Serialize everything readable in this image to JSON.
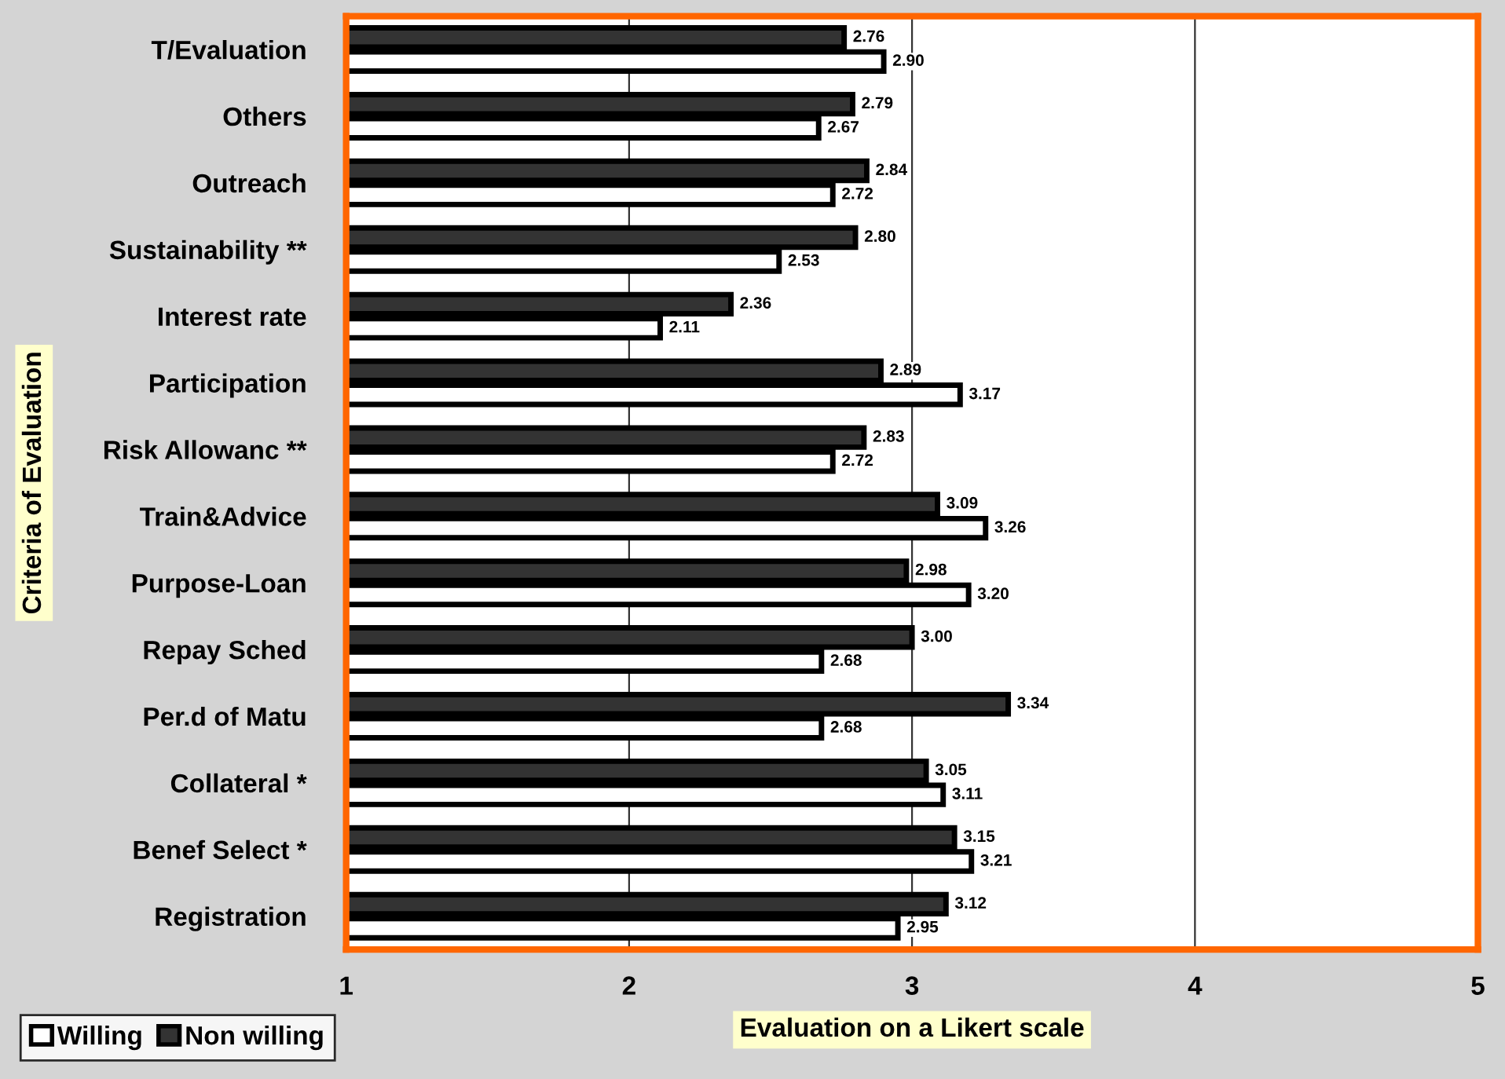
{
  "chart_data": {
    "type": "bar",
    "orientation": "horizontal",
    "xlabel": "Evaluation on a Likert scale",
    "ylabel": "Criteria of Evaluation",
    "categories": [
      "T/Evaluation",
      "Others",
      "Outreach",
      "Sustainability **",
      "Interest rate",
      "Participation",
      "Risk Allowanc **",
      "Train&Advice",
      "Purpose-Loan",
      "Repay Sched",
      "Per.d of Matu",
      "Collateral *",
      "Benef Select *",
      "Registration"
    ],
    "series": [
      {
        "name": "Non willing",
        "color": "#333333",
        "values": [
          2.76,
          2.79,
          2.84,
          2.8,
          2.36,
          2.89,
          2.83,
          3.09,
          2.98,
          3.0,
          3.34,
          3.05,
          3.15,
          3.12
        ],
        "value_labels": [
          "2.76",
          "2.79",
          "2.84",
          "2.80",
          "2.36",
          "2.89",
          "2.83",
          "3.09",
          "2.98",
          "3.00",
          "3.34",
          "3.05",
          "3.15",
          "3.12"
        ]
      },
      {
        "name": "Willing",
        "color": "#ffffff",
        "values": [
          2.9,
          2.67,
          2.72,
          2.53,
          2.11,
          3.17,
          2.72,
          3.26,
          3.2,
          2.68,
          2.68,
          3.11,
          3.21,
          2.95
        ],
        "value_labels": [
          "2.90",
          "2.67",
          "2.72",
          "2.53",
          "2.11",
          "3.17",
          "2.72",
          "3.26",
          "3.20",
          "2.68",
          "2.68",
          "3.11",
          "3.21",
          "2.95"
        ]
      }
    ],
    "xlim": [
      1,
      5
    ],
    "xticks": [
      1,
      2,
      3,
      4,
      5
    ],
    "grid": "x",
    "legend": "bottom left"
  }
}
